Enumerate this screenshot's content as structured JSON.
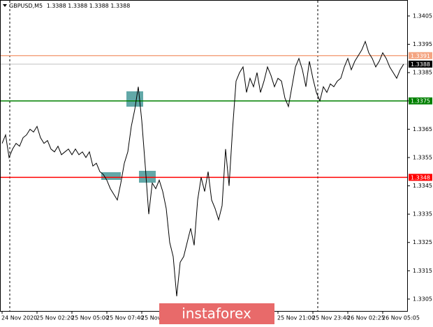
{
  "chart_data": {
    "type": "line",
    "symbol": "GBPUSD,M5",
    "ohlc": [
      1.3388,
      1.3388,
      1.3388,
      1.3388
    ],
    "watermark": "instaforex",
    "series": [
      {
        "name": "GBPUSD",
        "color": "#000000",
        "values": [
          1.336,
          1.3363,
          1.3355,
          1.3358,
          1.336,
          1.3359,
          1.3362,
          1.3363,
          1.3365,
          1.3364,
          1.3366,
          1.3362,
          1.336,
          1.3361,
          1.3358,
          1.3357,
          1.3359,
          1.3356,
          1.3357,
          1.3358,
          1.3356,
          1.3358,
          1.3356,
          1.3357,
          1.3355,
          1.3357,
          1.3352,
          1.3353,
          1.335,
          1.3349,
          1.3347,
          1.3344,
          1.3342,
          1.334,
          1.3346,
          1.3353,
          1.3357,
          1.3366,
          1.3372,
          1.338,
          1.3368,
          1.3352,
          1.3335,
          1.3346,
          1.3344,
          1.3347,
          1.3343,
          1.3337,
          1.3325,
          1.332,
          1.3306,
          1.3318,
          1.332,
          1.3325,
          1.333,
          1.3324,
          1.334,
          1.3348,
          1.3343,
          1.335,
          1.334,
          1.3337,
          1.3333,
          1.3338,
          1.3358,
          1.3345,
          1.3365,
          1.3382,
          1.3385,
          1.3387,
          1.3378,
          1.3383,
          1.338,
          1.3385,
          1.3378,
          1.3382,
          1.3387,
          1.3384,
          1.338,
          1.3383,
          1.3382,
          1.3376,
          1.3373,
          1.338,
          1.3387,
          1.339,
          1.3386,
          1.338,
          1.3389,
          1.3383,
          1.3378,
          1.3375,
          1.338,
          1.3378,
          1.3381,
          1.338,
          1.3382,
          1.3383,
          1.3387,
          1.339,
          1.3386,
          1.3389,
          1.3391,
          1.3393,
          1.3396,
          1.3392,
          1.339,
          1.3387,
          1.3389,
          1.3392,
          1.339,
          1.3387,
          1.3385,
          1.3383,
          1.3386,
          1.3388
        ]
      }
    ],
    "ylim": [
      1.33008,
      1.34104
    ],
    "yticks": [
      1.3305,
      1.3315,
      1.3325,
      1.3335,
      1.3345,
      1.3355,
      1.3365,
      1.3375,
      1.3385,
      1.3395,
      1.3405
    ],
    "xticks": [
      {
        "value": 0,
        "label": "24 Nov 2020"
      },
      {
        "value": 10,
        "label": "25 Nov 02:20"
      },
      {
        "value": 20,
        "label": "25 Nov 05:00"
      },
      {
        "value": 30,
        "label": "25 Nov 07:40"
      },
      {
        "value": 40,
        "label": "25 Nov"
      },
      {
        "value": 79,
        "label": "25 Nov 21:00"
      },
      {
        "value": 89,
        "label": "25 Nov 23:40"
      },
      {
        "value": 99,
        "label": "26 Nov 02:25"
      },
      {
        "value": 109,
        "label": "26 Nov 05:05"
      }
    ],
    "levels": [
      {
        "value": 1.3391,
        "color": "#f4a582"
      },
      {
        "value": 1.3388,
        "color": "#c0c0c0"
      },
      {
        "value": 1.3375,
        "color": "#008000"
      },
      {
        "value": 1.3348,
        "color": "#ff0000"
      }
    ]
  }
}
